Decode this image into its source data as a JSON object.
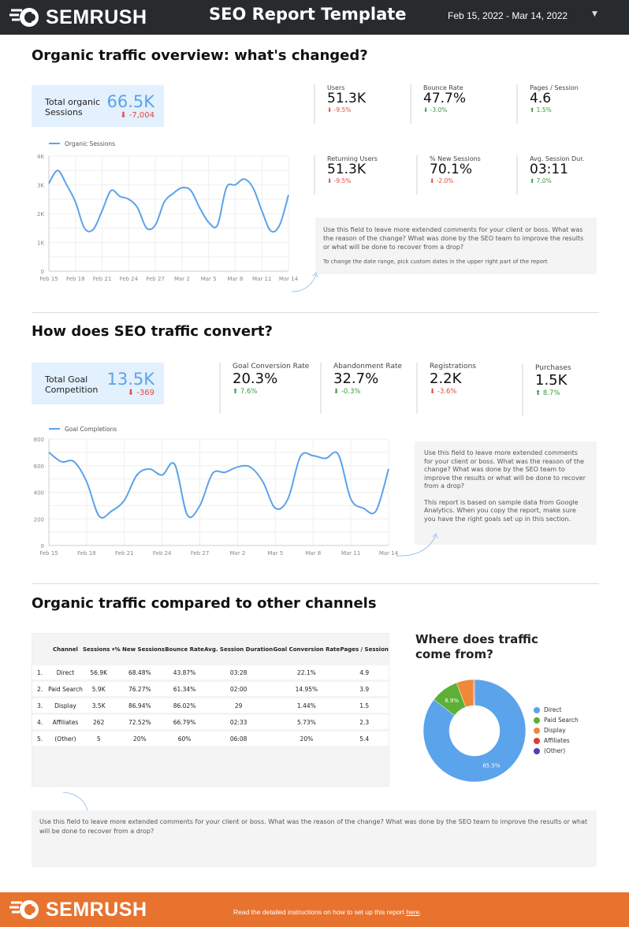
{
  "header": {
    "brand": "SEMRUSH",
    "title": "SEO Report Template",
    "date_range": "Feb 15, 2022 - Mar 14, 2022"
  },
  "section1": {
    "title": "Organic traffic overview: what's changed?",
    "kpi": {
      "label": "Total organic Sessions",
      "value": "66.5K",
      "delta": "-7,004",
      "direction": "down"
    },
    "scorecards": [
      {
        "label": "Users",
        "value": "51.3K",
        "delta": "-9.5%",
        "direction": "down",
        "sentiment": "bad"
      },
      {
        "label": "Bounce Rate",
        "value": "47.7%",
        "delta": "-3.0%",
        "direction": "down",
        "sentiment": "good"
      },
      {
        "label": "Pages / Session",
        "value": "4.6",
        "delta": "1.5%",
        "direction": "up",
        "sentiment": "good"
      },
      {
        "label": "Returning Users",
        "value": "51.3K",
        "delta": "-9.5%",
        "direction": "down",
        "sentiment": "bad"
      },
      {
        "label": "% New Sessions",
        "value": "70.1%",
        "delta": "-2.0%",
        "direction": "down",
        "sentiment": "bad"
      },
      {
        "label": "Avg. Session Dur.",
        "value": "03:11",
        "delta": "7.0%",
        "direction": "up",
        "sentiment": "good"
      }
    ],
    "note": "Use this field to leave more extended comments for your client or boss. What was the reason of the change? What was done by the SEO team to improve the results or what will be done to recover from a drop?",
    "note2": "To change the date range, pick custom dates in the upper right part of the report"
  },
  "section2": {
    "title": "How does SEO traffic convert?",
    "kpi": {
      "label": "Total Goal Competition",
      "value": "13.5K",
      "delta": "-369",
      "direction": "down"
    },
    "scorecards": [
      {
        "label": "Goal Conversion Rate",
        "value": "20.3%",
        "delta": "7.6%",
        "direction": "up",
        "sentiment": "good"
      },
      {
        "label": "Abandonment Rate",
        "value": "32.7%",
        "delta": "-0.3%",
        "direction": "down",
        "sentiment": "good"
      },
      {
        "label": "Registrations",
        "value": "2.2K",
        "delta": "-3.6%",
        "direction": "down",
        "sentiment": "bad"
      },
      {
        "label": "Purchases",
        "value": "1.5K",
        "delta": "8.7%",
        "direction": "up",
        "sentiment": "good"
      }
    ],
    "note": "Use this field to leave more extended comments for your client or boss. What was the reason of the change? What was done by the SEO team to improve the results or what will be done to recover from a drop?",
    "note2": "This report is based on sample data from Google Analytics. When you copy the report, make sure you have the right goals set up in this section."
  },
  "section3": {
    "title": "Organic traffic compared to other channels",
    "table": {
      "columns": [
        "",
        "Channel",
        "Sessions ▾",
        "% New Sessions",
        "Bounce Rate",
        "Avg. Session Duration",
        "Goal Conversion Rate",
        "Pages / Session"
      ],
      "rows": [
        [
          "1.",
          "Direct",
          "56.9K",
          "68.48%",
          "43.87%",
          "03:28",
          "22.1%",
          "4.9"
        ],
        [
          "2.",
          "Paid Search",
          "5.9K",
          "76.27%",
          "61.34%",
          "02:00",
          "14.95%",
          "3.9"
        ],
        [
          "3.",
          "Display",
          "3.5K",
          "86.94%",
          "86.02%",
          "29",
          "1.44%",
          "1.5"
        ],
        [
          "4.",
          "Affiliates",
          "262",
          "72.52%",
          "66.79%",
          "02:33",
          "5.73%",
          "2.3"
        ],
        [
          "5.",
          "(Other)",
          "5",
          "20%",
          "60%",
          "06:08",
          "20%",
          "5.4"
        ]
      ]
    },
    "pie_title": "Where does traffic come from?",
    "note": "Use this field to leave more extended comments for your client or boss. What was the reason of the change? What was done by the SEO team to improve the results or what will be done to recover from a drop?"
  },
  "footer": {
    "brand": "SEMRUSH",
    "text": "Read the detailed instructions on how to set up this report ",
    "link": "here",
    "end": "."
  },
  "colors": {
    "accent": "#5ba3ea",
    "header_bg": "#272b2e",
    "footer_bg": "#e8732f",
    "kpi_bg": "#e3f0fd",
    "up": "#3c9a42",
    "down": "#e04a3f"
  },
  "chart_data": [
    {
      "type": "line",
      "series": [
        {
          "name": "Organic Sessions",
          "values": [
            3050,
            3500,
            3000,
            2400,
            1500,
            1450,
            2100,
            2800,
            2600,
            2500,
            2200,
            1500,
            1600,
            2400,
            2700,
            2900,
            2800,
            2200,
            1700,
            1600,
            2900,
            3000,
            3200,
            2900,
            2100,
            1400,
            1600,
            2650
          ]
        }
      ],
      "x_start": "Feb 15",
      "x_ticks": [
        "Feb 15",
        "Feb 18",
        "Feb 21",
        "Feb 24",
        "Feb 27",
        "Mar 2",
        "Mar 5",
        "Mar 8",
        "Mar 11",
        "Mar 14"
      ],
      "y_ticks": [
        "0",
        "1K",
        "2K",
        "3K",
        "4K"
      ],
      "ylim": [
        0,
        4000
      ],
      "grid": true,
      "legend": "top-left"
    },
    {
      "type": "line",
      "series": [
        {
          "name": "Goal Completions",
          "values": [
            700,
            630,
            630,
            480,
            220,
            260,
            340,
            530,
            575,
            530,
            610,
            230,
            300,
            540,
            550,
            590,
            590,
            480,
            280,
            350,
            670,
            675,
            655,
            685,
            350,
            280,
            260,
            575
          ]
        }
      ],
      "x_ticks": [
        "Feb 15",
        "Feb 18",
        "Feb 21",
        "Feb 24",
        "Feb 27",
        "Mar 2",
        "Mar 5",
        "Mar 8",
        "Mar 11",
        "Mar 14"
      ],
      "y_ticks": [
        "0",
        "200",
        "400",
        "600",
        "800"
      ],
      "ylim": [
        0,
        800
      ],
      "grid": true,
      "legend": "top-left"
    },
    {
      "type": "pie",
      "donut": true,
      "categories": [
        "Direct",
        "Paid Search",
        "Display",
        "Affiliates",
        "(Other)"
      ],
      "values": [
        85.5,
        8.9,
        5.3,
        0.4,
        0.01
      ],
      "labels": [
        "85.5%",
        "8.9%",
        "",
        "",
        ""
      ],
      "colors": [
        "#5ba3ea",
        "#5bb035",
        "#f0883a",
        "#e03a35",
        "#5040b5"
      ],
      "legend": "right"
    }
  ]
}
